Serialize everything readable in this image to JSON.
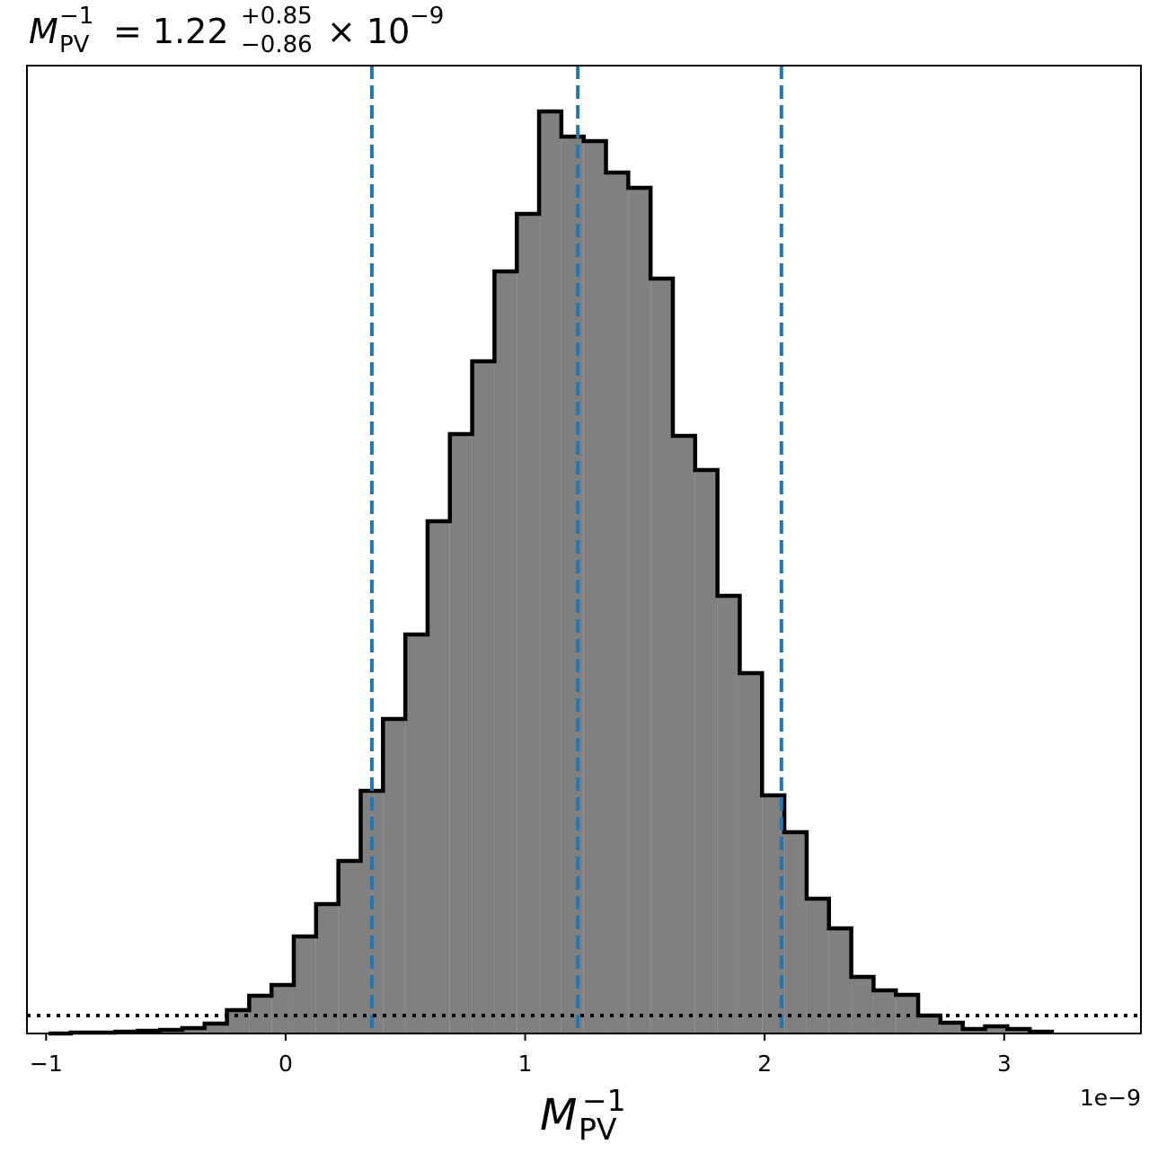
{
  "chart_data": {
    "type": "histogram",
    "title": {
      "symbol": "M",
      "sub": "PV",
      "sup": "−1",
      "equals": "= 1.22",
      "upper": "+0.85",
      "lower": "−0.86",
      "times": "× 10",
      "exp": "−9"
    },
    "xlabel": {
      "symbol": "M",
      "sub": "PV",
      "sup": "−1"
    },
    "x_offset_label": "1e−9",
    "bins": [
      -0.99,
      -0.8969,
      -0.8038,
      -0.7107,
      -0.6176,
      -0.5245,
      -0.4314,
      -0.3383,
      -0.2452,
      -0.1521,
      -0.059,
      0.0341,
      0.1272,
      0.2203,
      0.3134,
      0.4065,
      0.4996,
      0.5927,
      0.6858,
      0.7789,
      0.872,
      0.9651,
      1.0582,
      1.1513,
      1.2444,
      1.3375,
      1.4306,
      1.5237,
      1.6168,
      1.7099,
      1.803,
      1.8961,
      1.9892,
      2.0823,
      2.1754,
      2.2685,
      2.3616,
      2.4547,
      2.5478,
      2.6409,
      2.734,
      2.8271,
      2.9202,
      3.0133,
      3.1064,
      3.1995
    ],
    "values": [
      0,
      1,
      1,
      2,
      3,
      4,
      6,
      11,
      26,
      42,
      54,
      108,
      144,
      192,
      270,
      350,
      444,
      570,
      667,
      748,
      848,
      912,
      1026,
      998,
      993,
      958,
      941,
      840,
      665,
      627,
      487,
      401,
      265,
      224,
      150,
      117,
      63,
      48,
      43,
      20,
      12,
      5,
      8,
      5,
      2
    ],
    "color": "#808080",
    "edge_color": "#000000",
    "quantiles": [
      0.36,
      1.22,
      2.07
    ],
    "quantile_color": "#1f77b4",
    "threshold": 20,
    "xlim": [
      -1.08,
      3.571
    ],
    "ylim": [
      0,
      1077
    ],
    "xticks": [
      {
        "value": -1,
        "label": "−1"
      },
      0,
      1,
      2,
      3
    ]
  }
}
